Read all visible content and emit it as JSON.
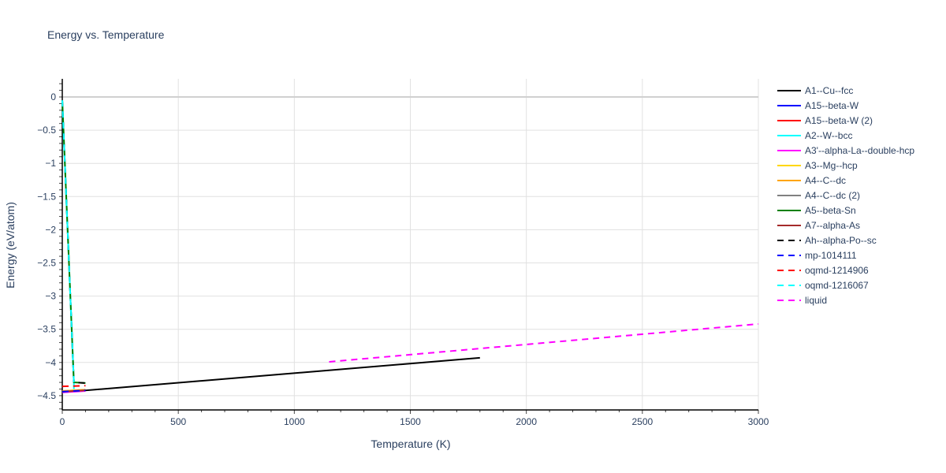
{
  "chart_data": {
    "type": "line",
    "title": "Energy vs. Temperature",
    "xlabel": "Temperature (K)",
    "ylabel": "Energy (eV/atom)",
    "xlim": [
      0,
      3000
    ],
    "ylim": [
      -4.7,
      0.27
    ],
    "x_ticks": [
      "0",
      "500",
      "1000",
      "1500",
      "2000",
      "2500",
      "3000"
    ],
    "y_ticks": [
      "0",
      "−0.5",
      "−1",
      "−1.5",
      "−2",
      "−2.5",
      "−3",
      "−3.5",
      "−4",
      "−4.5"
    ],
    "grid": true,
    "legend_position": "right",
    "series": [
      {
        "name": "A1--Cu--fcc",
        "color": "#000000",
        "dash": false,
        "x": [
          0,
          1800
        ],
        "y": [
          -4.45,
          -3.93
        ]
      },
      {
        "name": "A15--beta-W",
        "color": "#0000ff",
        "dash": false,
        "x": [
          0,
          100
        ],
        "y": [
          -4.44,
          -4.42
        ]
      },
      {
        "name": "A15--beta-W (2)",
        "color": "#ff0000",
        "dash": false,
        "x": [
          0,
          100
        ],
        "y": [
          -4.44,
          -4.42
        ]
      },
      {
        "name": "A2--W--bcc",
        "color": "#00ffff",
        "dash": false,
        "x": [
          0,
          50,
          50
        ],
        "y": [
          -0.05,
          -4.3,
          -4.4
        ]
      },
      {
        "name": "A3'--alpha-La--double-hcp",
        "color": "#ff00ff",
        "dash": false,
        "x": [
          0,
          100
        ],
        "y": [
          -4.45,
          -4.43
        ]
      },
      {
        "name": "A3--Mg--hcp",
        "color": "#ffd700",
        "dash": false,
        "x": [
          0,
          100
        ],
        "y": [
          -4.43,
          -4.41
        ]
      },
      {
        "name": "A4--C--dc",
        "color": "#ffa500",
        "dash": false,
        "x": [
          0,
          100
        ],
        "y": [
          -4.43,
          -4.41
        ]
      },
      {
        "name": "A4--C--dc (2)",
        "color": "#808080",
        "dash": false,
        "x": [
          0,
          100
        ],
        "y": [
          -4.44,
          -4.42
        ]
      },
      {
        "name": "A5--beta-Sn",
        "color": "#008000",
        "dash": false,
        "x": [
          0,
          50,
          100
        ],
        "y": [
          -0.05,
          -4.3,
          -4.31
        ]
      },
      {
        "name": "A7--alpha-As",
        "color": "#a52a2a",
        "dash": false,
        "x": [
          0,
          100
        ],
        "y": [
          -4.44,
          -4.42
        ]
      },
      {
        "name": "Ah--alpha-Po--sc",
        "color": "#000000",
        "dash": true,
        "x": [
          0,
          50,
          100
        ],
        "y": [
          -0.05,
          -4.3,
          -4.31
        ]
      },
      {
        "name": "mp-1014111",
        "color": "#0000ff",
        "dash": true,
        "x": [
          0,
          100
        ],
        "y": [
          -4.44,
          -4.42
        ]
      },
      {
        "name": "oqmd-1214906",
        "color": "#ff0000",
        "dash": true,
        "x": [
          0,
          100
        ],
        "y": [
          -4.36,
          -4.35
        ]
      },
      {
        "name": "oqmd-1216067",
        "color": "#00ffff",
        "dash": true,
        "x": [
          0,
          50
        ],
        "y": [
          -0.05,
          -4.3
        ]
      },
      {
        "name": "liquid",
        "color": "#ff00ff",
        "dash": true,
        "x": [
          1150,
          3000
        ],
        "y": [
          -3.99,
          -3.42
        ]
      }
    ]
  }
}
